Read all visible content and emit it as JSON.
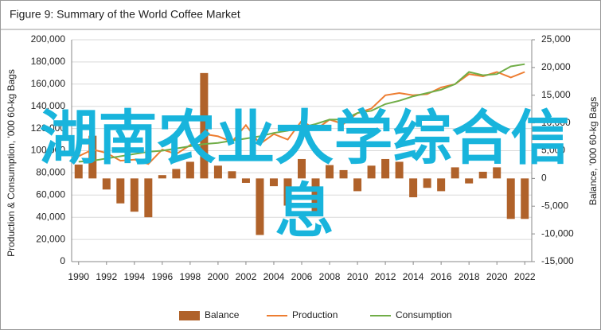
{
  "chart_data": {
    "type": "combo",
    "title": "Figure 9: Summary of the World Coffee Market",
    "y_label": "Production & Consumption, '000 60-kg Bags",
    "y2_label": "Balance, '000 60-kg Bags",
    "overlay_text": "湖南农业大学综合信息",
    "x": [
      1990,
      1991,
      1992,
      1993,
      1994,
      1995,
      1996,
      1997,
      1998,
      1999,
      2000,
      2001,
      2002,
      2003,
      2004,
      2005,
      2006,
      2007,
      2008,
      2009,
      2010,
      2011,
      2012,
      2013,
      2014,
      2015,
      2016,
      2017,
      2018,
      2019,
      2020,
      2021,
      2022
    ],
    "xlim": [
      1989.5,
      2022.5
    ],
    "xticks": [
      1990,
      1992,
      1994,
      1996,
      1998,
      2000,
      2002,
      2004,
      2006,
      2008,
      2010,
      2012,
      2014,
      2016,
      2018,
      2020,
      2022
    ],
    "ylim": [
      0,
      200000
    ],
    "yticks": [
      0,
      {
        "value": 20000,
        "label": "20,000"
      },
      {
        "value": 40000,
        "label": "40,000"
      },
      {
        "value": 60000,
        "label": "60,000"
      },
      {
        "value": 80000,
        "label": "80,000"
      },
      {
        "value": 100000,
        "label": "100,000"
      },
      {
        "value": 120000,
        "label": "120,000"
      },
      {
        "value": 140000,
        "label": "140,000"
      },
      {
        "value": 160000,
        "label": "160,000"
      },
      {
        "value": 180000,
        "label": "180,000"
      },
      {
        "value": 200000,
        "label": "200,000"
      }
    ],
    "y2lim": [
      -15000,
      25000
    ],
    "y2ticks": [
      {
        "value": -15000,
        "label": "-15,000"
      },
      {
        "value": -10000,
        "label": "-10,000"
      },
      {
        "value": -5000,
        "label": "-5,000"
      },
      0,
      {
        "value": 5000,
        "label": "5,000"
      },
      {
        "value": 10000,
        "label": "10,000"
      },
      {
        "value": 15000,
        "label": "15,000"
      },
      {
        "value": 20000,
        "label": "20,000"
      },
      {
        "value": 25000,
        "label": "25,000"
      }
    ],
    "grid": true,
    "legend": "bottom",
    "series": [
      {
        "name": "Balance",
        "type": "bar",
        "axis": "y2",
        "color": "#b0622a",
        "values": [
          2500,
          7700,
          -2000,
          -4500,
          -6000,
          -7000,
          600,
          1700,
          3000,
          19000,
          2300,
          1300,
          -800,
          -10200,
          -1400,
          -4900,
          3500,
          -6300,
          2400,
          1500,
          -2300,
          2300,
          3500,
          3000,
          -3400,
          -1700,
          -2300,
          2000,
          -900,
          1200,
          2000,
          -7300,
          -7300
        ]
      },
      {
        "name": "Production",
        "type": "line",
        "color": "#ed7d31",
        "values": [
          95000,
          101000,
          98000,
          91000,
          92000,
          88000,
          101000,
          97000,
          105000,
          115000,
          113000,
          108000,
          123000,
          106000,
          115000,
          110000,
          127000,
          119000,
          128000,
          124000,
          134000,
          138000,
          150000,
          152000,
          150000,
          151000,
          157000,
          160000,
          169000,
          167000,
          171000,
          166000,
          171000
        ]
      },
      {
        "name": "Consumption",
        "type": "line",
        "color": "#70ad47",
        "values": [
          90000,
          91000,
          93000,
          95000,
          97000,
          99000,
          100000,
          102000,
          104000,
          106000,
          107000,
          109000,
          111000,
          113000,
          116000,
          118000,
          121000,
          124000,
          128000,
          128000,
          134000,
          136000,
          142000,
          145000,
          149000,
          152000,
          155000,
          160000,
          171000,
          168000,
          169000,
          176000,
          178000
        ]
      }
    ]
  }
}
